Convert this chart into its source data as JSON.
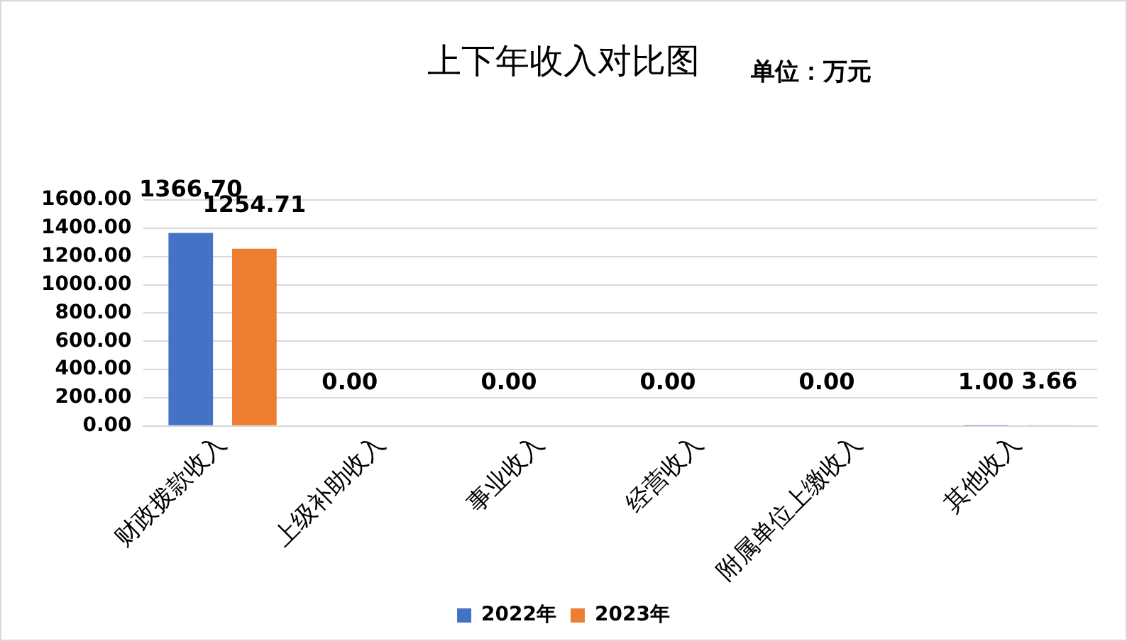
{
  "chart_data": {
    "type": "bar",
    "title": "上下年收入对比图",
    "subtitle": "单位：万元",
    "categories": [
      "财政拨款收入",
      "上级补助收入",
      "事业收入",
      "经营收入",
      "附属单位上缴收入",
      "其他收入"
    ],
    "series": [
      {
        "name": "2022年",
        "color": "#4472c4",
        "values": [
          1366.7,
          0,
          0,
          0,
          0,
          1.0
        ],
        "value_labels": [
          "1366.70",
          "0.00",
          "0.00",
          "0.00",
          "0.00",
          "1.00"
        ]
      },
      {
        "name": "2023年",
        "color": "#ed7d31",
        "values": [
          1254.71,
          0,
          0,
          0,
          0,
          3.66
        ],
        "value_labels": [
          "1254.71",
          null,
          null,
          null,
          null,
          "3.66"
        ]
      }
    ],
    "ylim": [
      0,
      1600
    ],
    "yticks": [
      {
        "value": 0,
        "label": "0.00"
      },
      {
        "value": 200,
        "label": "200.00"
      },
      {
        "value": 400,
        "label": "400.00"
      },
      {
        "value": 600,
        "label": "600.00"
      },
      {
        "value": 800,
        "label": "800.00"
      },
      {
        "value": 1000,
        "label": "1000.00"
      },
      {
        "value": 1200,
        "label": "1200.00"
      },
      {
        "value": 1400,
        "label": "1400.00"
      },
      {
        "value": 1600,
        "label": "1600.00"
      }
    ],
    "grid": "y",
    "legend": "bottom"
  }
}
